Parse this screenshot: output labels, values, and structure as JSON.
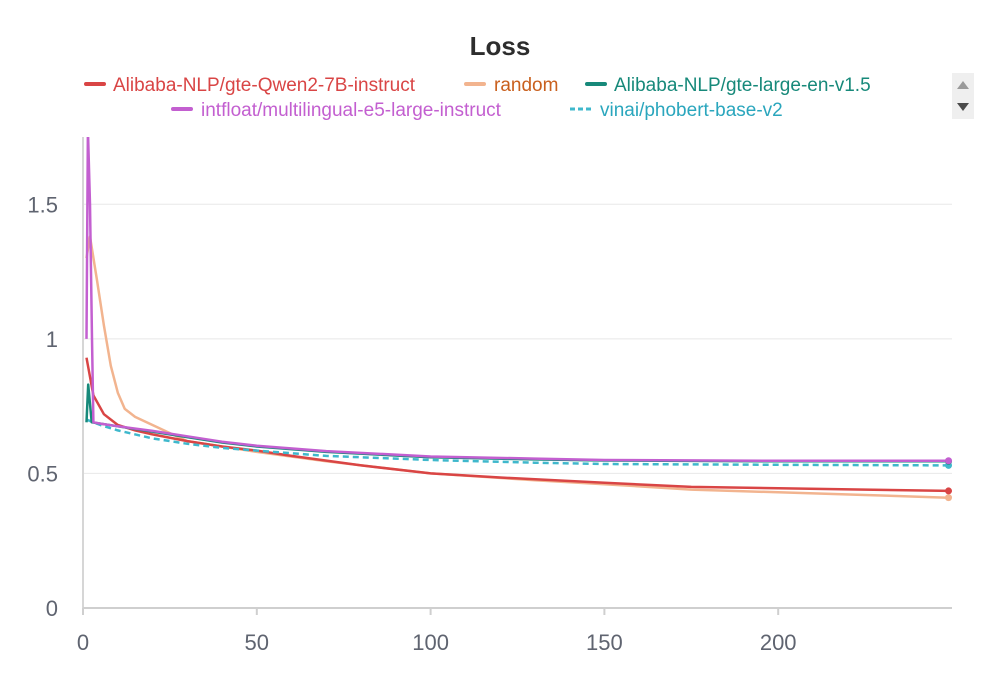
{
  "chart_data": {
    "type": "line",
    "title": "Loss",
    "xlabel": "",
    "ylabel": "",
    "xlim": [
      0,
      250
    ],
    "ylim": [
      0,
      1.75
    ],
    "xticks": [
      0,
      50,
      100,
      150,
      200
    ],
    "yticks": [
      0,
      0.5,
      1,
      1.5
    ],
    "xtick_labels": [
      "0",
      "50",
      "100",
      "150",
      "200"
    ],
    "ytick_labels": [
      "0",
      "0.5",
      "1",
      "1.5"
    ],
    "grid": "horizontal",
    "legend_position": "top",
    "series": [
      {
        "name": "Alibaba-NLP/gte-Qwen2-7B-instruct",
        "color": "#d94545",
        "dash": false,
        "end_marker": true,
        "points": [
          [
            1,
            0.93
          ],
          [
            3,
            0.79
          ],
          [
            6,
            0.72
          ],
          [
            10,
            0.68
          ],
          [
            15,
            0.66
          ],
          [
            20,
            0.645
          ],
          [
            30,
            0.62
          ],
          [
            40,
            0.6
          ],
          [
            50,
            0.585
          ],
          [
            60,
            0.565
          ],
          [
            80,
            0.53
          ],
          [
            100,
            0.5
          ],
          [
            120,
            0.485
          ],
          [
            150,
            0.465
          ],
          [
            175,
            0.45
          ],
          [
            200,
            0.445
          ],
          [
            225,
            0.44
          ],
          [
            249,
            0.435
          ]
        ]
      },
      {
        "name": "random",
        "color": "#f2b48f",
        "dash": false,
        "end_marker": true,
        "points": [
          [
            1,
            1.3
          ],
          [
            2,
            1.38
          ],
          [
            4,
            1.22
          ],
          [
            6,
            1.05
          ],
          [
            8,
            0.9
          ],
          [
            10,
            0.8
          ],
          [
            12,
            0.74
          ],
          [
            15,
            0.71
          ],
          [
            20,
            0.68
          ],
          [
            25,
            0.65
          ],
          [
            30,
            0.62
          ],
          [
            40,
            0.6
          ],
          [
            50,
            0.58
          ],
          [
            70,
            0.545
          ],
          [
            100,
            0.5
          ],
          [
            130,
            0.475
          ],
          [
            150,
            0.46
          ],
          [
            175,
            0.44
          ],
          [
            200,
            0.43
          ],
          [
            225,
            0.42
          ],
          [
            249,
            0.41
          ]
        ]
      },
      {
        "name": "Alibaba-NLP/gte-large-en-v1.5",
        "color": "#17897a",
        "dash": false,
        "end_marker": true,
        "points": [
          [
            1,
            0.69
          ],
          [
            1.5,
            0.83
          ],
          [
            2.5,
            0.69
          ],
          [
            5,
            0.685
          ],
          [
            10,
            0.675
          ],
          [
            20,
            0.655
          ],
          [
            30,
            0.635
          ],
          [
            40,
            0.615
          ],
          [
            50,
            0.6
          ],
          [
            70,
            0.58
          ],
          [
            100,
            0.56
          ],
          [
            130,
            0.552
          ],
          [
            150,
            0.548
          ],
          [
            200,
            0.545
          ],
          [
            249,
            0.545
          ]
        ]
      },
      {
        "name": "intfloat/multilingual-e5-large-instruct",
        "color": "#c35fd0",
        "dash": false,
        "end_marker": true,
        "points": [
          [
            1,
            1.0
          ],
          [
            1.4,
            1.78
          ],
          [
            2,
            1.5
          ],
          [
            2.6,
            1.0
          ],
          [
            3,
            0.69
          ],
          [
            5,
            0.685
          ],
          [
            10,
            0.675
          ],
          [
            20,
            0.658
          ],
          [
            30,
            0.638
          ],
          [
            40,
            0.618
          ],
          [
            50,
            0.603
          ],
          [
            70,
            0.583
          ],
          [
            100,
            0.563
          ],
          [
            130,
            0.555
          ],
          [
            150,
            0.55
          ],
          [
            200,
            0.547
          ],
          [
            249,
            0.547
          ]
        ]
      },
      {
        "name": "vinai/phobert-base-v2",
        "color": "#3fb8cc",
        "dash": true,
        "end_marker": true,
        "points": [
          [
            1,
            0.7
          ],
          [
            5,
            0.68
          ],
          [
            10,
            0.66
          ],
          [
            20,
            0.63
          ],
          [
            30,
            0.61
          ],
          [
            40,
            0.595
          ],
          [
            50,
            0.585
          ],
          [
            70,
            0.565
          ],
          [
            100,
            0.55
          ],
          [
            130,
            0.54
          ],
          [
            150,
            0.535
          ],
          [
            200,
            0.532
          ],
          [
            249,
            0.53
          ]
        ]
      }
    ]
  }
}
